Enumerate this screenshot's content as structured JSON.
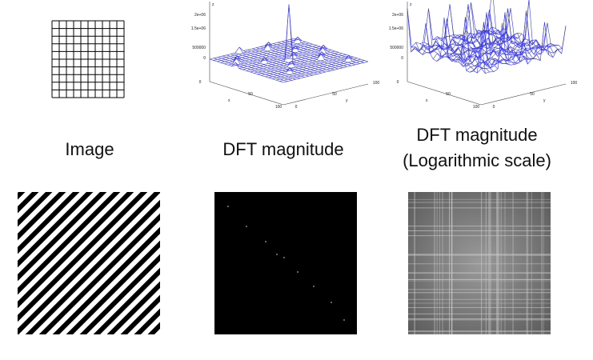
{
  "labels": {
    "image": "Image",
    "dft": "DFT magnitude",
    "dft_log": [
      "DFT magnitude",
      "(Logarithmic scale)"
    ]
  },
  "plots": [
    {
      "z_axis": "z",
      "z_ticks": [
        "2e+06",
        "1.5e+06",
        "500000",
        "0"
      ],
      "x_axis": "x",
      "x_ticks": [
        "0",
        "50",
        "100"
      ],
      "y_axis": "y",
      "y_ticks": [
        "0",
        "50",
        "100"
      ]
    },
    {
      "z_axis": "z",
      "z_ticks": [
        "2e+06",
        "1.5e+06",
        "500000",
        "0"
      ],
      "x_axis": "x",
      "x_ticks": [
        "0",
        "50",
        "100"
      ],
      "y_axis": "y",
      "y_ticks": [
        "0",
        "50",
        "100"
      ]
    }
  ]
}
